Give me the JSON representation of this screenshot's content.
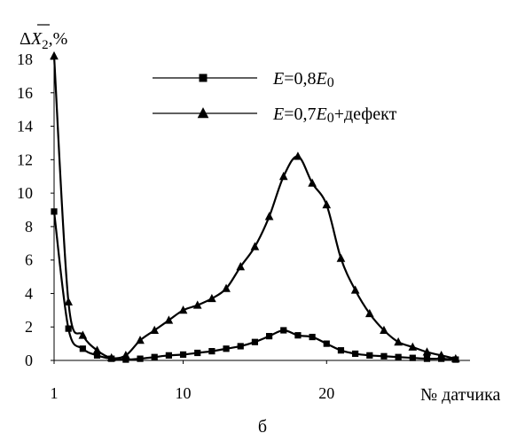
{
  "chart_data": {
    "type": "line",
    "ylabel": "ΔX̄₂,%",
    "xlabel": "№ датчика",
    "subfigure_label": "б",
    "x": [
      1,
      2,
      3,
      4,
      5,
      6,
      7,
      8,
      9,
      10,
      11,
      12,
      13,
      14,
      15,
      16,
      17,
      18,
      19,
      20,
      21,
      22,
      23,
      24,
      25,
      26,
      27,
      28,
      29
    ],
    "xlim": [
      1,
      30
    ],
    "ylim": [
      0,
      18
    ],
    "xticks": [
      1,
      10,
      20
    ],
    "yticks": [
      0,
      2,
      4,
      6,
      8,
      10,
      12,
      14,
      16,
      18
    ],
    "legend_position": "top-right",
    "series": [
      {
        "name": "E=0,8E0",
        "legend_parts": {
          "var": "E",
          "eq": "=0,8",
          "var2": "E",
          "sub": "0",
          "rest": ""
        },
        "marker": "square",
        "values": [
          8.9,
          1.9,
          0.7,
          0.3,
          0.1,
          0.05,
          0.1,
          0.2,
          0.3,
          0.35,
          0.45,
          0.55,
          0.7,
          0.85,
          1.1,
          1.45,
          1.8,
          1.5,
          1.4,
          1.0,
          0.6,
          0.4,
          0.3,
          0.25,
          0.2,
          0.15,
          0.1,
          0.1,
          0.05
        ]
      },
      {
        "name": "E=0,7E0+дефект",
        "legend_parts": {
          "var": "E",
          "eq": "=0,7",
          "var2": "E",
          "sub": "0",
          "rest": "+дефект"
        },
        "marker": "triangle",
        "values": [
          18.2,
          3.5,
          1.5,
          0.6,
          0.15,
          0.3,
          1.2,
          1.8,
          2.4,
          3.0,
          3.3,
          3.7,
          4.3,
          5.6,
          6.8,
          8.6,
          11.0,
          12.2,
          10.6,
          9.3,
          6.1,
          4.2,
          2.8,
          1.8,
          1.1,
          0.8,
          0.5,
          0.3,
          0.1
        ]
      }
    ]
  }
}
